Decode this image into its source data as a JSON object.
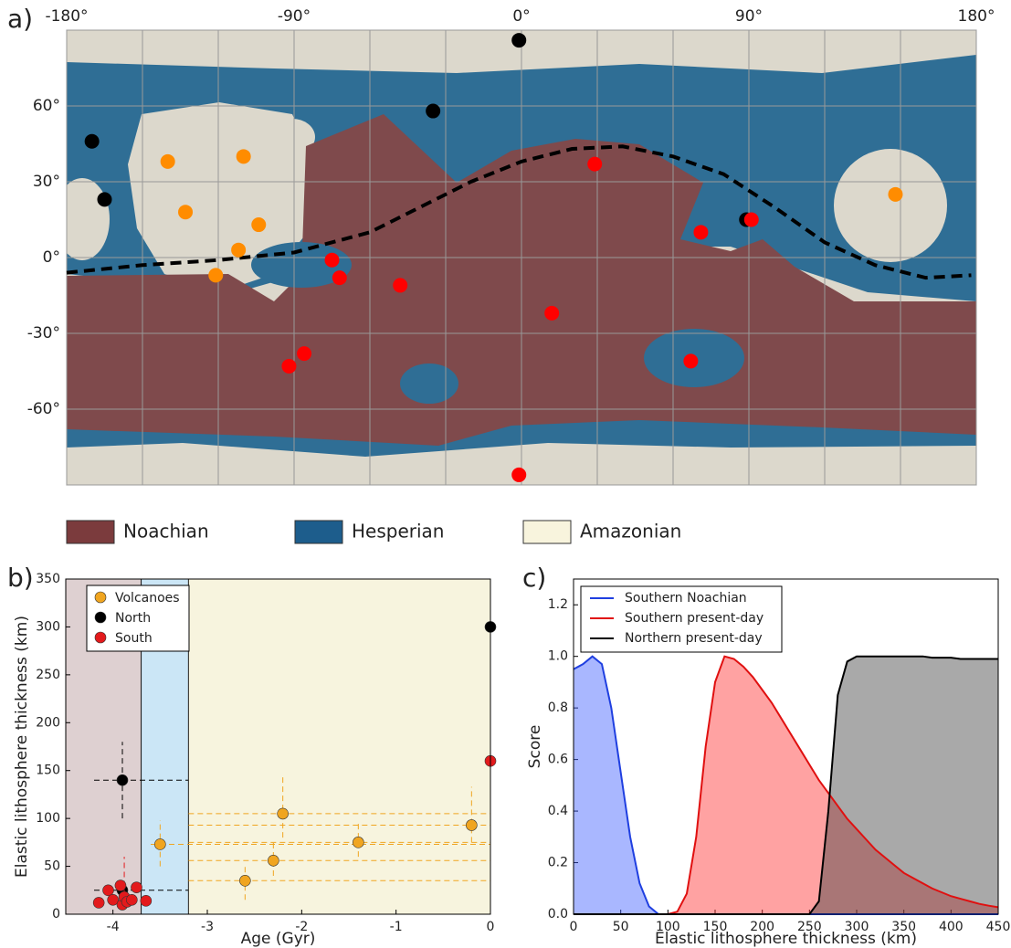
{
  "chart_data": [
    {
      "type": "map",
      "label": "a)",
      "xlim": [
        -180,
        180
      ],
      "ylim": [
        -90,
        90
      ],
      "xticks": [
        {
          "value": -180,
          "label": "-180°"
        },
        {
          "value": -90,
          "label": "-90°"
        },
        {
          "value": 0,
          "label": "0°"
        },
        {
          "value": 90,
          "label": "90°"
        },
        {
          "value": 180,
          "label": "180°"
        }
      ],
      "yticks": [
        {
          "value": 60,
          "label": "60°"
        },
        {
          "value": 30,
          "label": "30°"
        },
        {
          "value": 0,
          "label": "0°"
        },
        {
          "value": -30,
          "label": "-30°"
        },
        {
          "value": -60,
          "label": "-60°"
        }
      ],
      "xgrid": [
        -150,
        -120,
        -60,
        -30,
        30,
        60,
        120,
        150
      ],
      "ygrid": [
        90,
        -90
      ],
      "boundary": {
        "x": [
          -180,
          -150,
          -120,
          -90,
          -60,
          -40,
          -20,
          0,
          20,
          40,
          60,
          80,
          100,
          120,
          140,
          160,
          178
        ],
        "y": [
          -6,
          -3,
          -1,
          2,
          10,
          20,
          30,
          38,
          43,
          44,
          40,
          33,
          20,
          6,
          -3,
          -8,
          -7
        ]
      },
      "points": [
        {
          "color": "#ff8c00",
          "x": [
            -140,
            -110,
            -133,
            -104,
            -112,
            -121,
            148
          ],
          "y": [
            38,
            40,
            18,
            13,
            3,
            -7,
            25
          ]
        },
        {
          "color": "#000000",
          "x": [
            -170,
            -165,
            -35,
            -1,
            89
          ],
          "y": [
            46,
            23,
            58,
            86,
            15
          ]
        },
        {
          "color": "#ff0000",
          "x": [
            -75,
            -72,
            -48,
            12,
            29,
            71,
            67,
            -86,
            -92,
            -1,
            91
          ],
          "y": [
            -1,
            -8,
            -11,
            -22,
            37,
            10,
            -41,
            -38,
            -43,
            -86,
            15
          ]
        }
      ],
      "units": [
        {
          "name": "Noachian",
          "color": "#7b3b3d"
        },
        {
          "name": "Hesperian",
          "color": "#1d5d8c"
        },
        {
          "name": "Amazonian",
          "color": "#f8f4dd"
        }
      ]
    },
    {
      "type": "scatter",
      "label": "b)",
      "xlabel": "Age (Gyr)",
      "ylabel": "Elastic lithosphere thickness (km)",
      "xlim": [
        -4.5,
        0
      ],
      "ylim": [
        0,
        350
      ],
      "xticks": [
        -4,
        -3,
        -2,
        -1,
        0
      ],
      "yticks": [
        0,
        50,
        100,
        150,
        200,
        250,
        300,
        350
      ],
      "bands": [
        {
          "range": [
            -4.5,
            -3.7
          ],
          "color": "#ded0d1"
        },
        {
          "range": [
            -3.7,
            -3.2
          ],
          "color": "#cbe6f6"
        },
        {
          "range": [
            -3.2,
            0
          ],
          "color": "#f7f4de"
        }
      ],
      "series": [
        {
          "name": "Volcanoes",
          "color": "#f0a520",
          "x": [
            -3.5,
            -2.6,
            -2.3,
            -2.2,
            -1.4,
            -0.2
          ],
          "y": [
            73,
            35,
            56,
            105,
            75,
            93
          ],
          "x_range": [
            [
              -3.6,
              0
            ],
            [
              -3.2,
              0
            ],
            [
              -3.2,
              0
            ],
            [
              -3.2,
              0
            ],
            [
              -3.2,
              0
            ],
            [
              -3.2,
              0
            ]
          ],
          "y_range": [
            [
              50,
              98
            ],
            [
              15,
              50
            ],
            [
              40,
              75
            ],
            [
              80,
              143
            ],
            [
              60,
              95
            ],
            [
              75,
              133
            ]
          ]
        },
        {
          "name": "North",
          "color": "#000000",
          "x": [
            -3.9,
            -3.9,
            0
          ],
          "y": [
            140,
            25,
            300
          ],
          "x_range": [
            [
              -4.2,
              -3.2
            ],
            [
              -4.2,
              -3.2
            ],
            null
          ],
          "y_range": [
            [
              100,
              180
            ],
            null,
            [
              275,
              350
            ]
          ]
        },
        {
          "name": "South",
          "color": "#e31a1c",
          "x": [
            -4.15,
            -4.05,
            -4.0,
            -3.92,
            -3.9,
            -3.88,
            -3.85,
            -3.8,
            -3.75,
            -3.65,
            0
          ],
          "y": [
            12,
            25,
            15,
            30,
            10,
            18,
            13,
            15,
            28,
            14,
            160
          ],
          "x_range": [
            null,
            null,
            null,
            null,
            null,
            null,
            null,
            null,
            null,
            null,
            null
          ],
          "y_range": [
            null,
            null,
            null,
            null,
            null,
            [
              10,
              60
            ],
            null,
            null,
            null,
            null,
            [
              110,
              350
            ]
          ]
        }
      ]
    },
    {
      "type": "area",
      "label": "c)",
      "xlabel": "Elastic lithosphere thickness (km)",
      "ylabel": "Score",
      "xlim": [
        0,
        450
      ],
      "ylim": [
        0,
        1.3
      ],
      "xticks": [
        0,
        50,
        100,
        150,
        200,
        250,
        300,
        350,
        400,
        450
      ],
      "yticks": [
        {
          "value": 0,
          "label": "0.0"
        },
        0.2,
        0.4,
        0.6,
        0.8,
        {
          "value": 1,
          "label": "1.0"
        },
        1.2
      ],
      "x": [
        0,
        10,
        20,
        30,
        40,
        50,
        60,
        70,
        80,
        90,
        100,
        110,
        120,
        130,
        140,
        150,
        160,
        170,
        180,
        190,
        200,
        210,
        220,
        230,
        240,
        250,
        260,
        270,
        280,
        290,
        300,
        310,
        320,
        330,
        340,
        350,
        360,
        370,
        380,
        390,
        400,
        410,
        420,
        430,
        440,
        450
      ],
      "series": [
        {
          "name": "Southern Noachian",
          "color": "#1f3fe0",
          "fill": "#4060ff",
          "values": [
            0.95,
            0.97,
            1.0,
            0.97,
            0.8,
            0.55,
            0.3,
            0.12,
            0.03,
            0,
            0,
            0,
            0,
            0,
            0,
            0,
            0,
            0,
            0,
            0,
            0,
            0,
            0,
            0,
            0,
            0,
            0,
            0,
            0,
            0,
            0,
            0,
            0,
            0,
            0,
            0,
            0,
            0,
            0,
            0,
            0,
            0,
            0,
            0,
            0,
            0
          ]
        },
        {
          "name": "Southern present-day",
          "color": "#e01010",
          "fill": "#ff3030",
          "values": [
            0,
            0,
            0,
            0,
            0,
            0,
            0,
            0,
            0,
            0,
            0,
            0.01,
            0.08,
            0.3,
            0.65,
            0.9,
            1.0,
            0.99,
            0.96,
            0.92,
            0.87,
            0.82,
            0.76,
            0.7,
            0.64,
            0.58,
            0.52,
            0.47,
            0.42,
            0.37,
            0.33,
            0.29,
            0.25,
            0.22,
            0.19,
            0.16,
            0.14,
            0.12,
            0.1,
            0.085,
            0.07,
            0.06,
            0.05,
            0.04,
            0.033,
            0.027
          ]
        },
        {
          "name": "Northern present-day",
          "color": "#000000",
          "fill": "#404040",
          "values": [
            0,
            0,
            0,
            0,
            0,
            0,
            0,
            0,
            0,
            0,
            0,
            0,
            0,
            0,
            0,
            0,
            0,
            0,
            0,
            0,
            0,
            0,
            0,
            0,
            0,
            0,
            0.05,
            0.4,
            0.85,
            0.98,
            1.0,
            1.0,
            1.0,
            1.0,
            1.0,
            1.0,
            1.0,
            1.0,
            0.995,
            0.995,
            0.995,
            0.99,
            0.99,
            0.99,
            0.99,
            0.99
          ]
        }
      ]
    }
  ]
}
